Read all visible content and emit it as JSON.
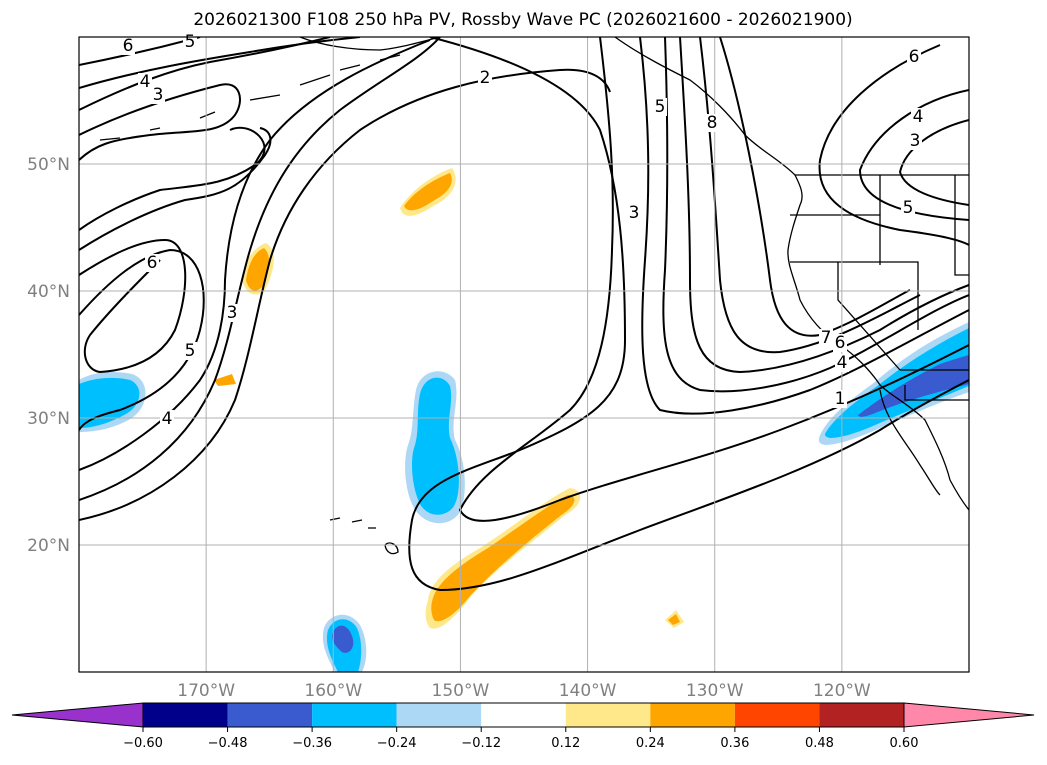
{
  "title": "2026021300 F108 250 hPa PV, Rossby Wave PC (2026021600 - 2026021900)",
  "map": {
    "lat_range": [
      10,
      60
    ],
    "lon_range": [
      -180,
      -110
    ],
    "lat_ticks": [
      {
        "value": 20,
        "label": "20°N"
      },
      {
        "value": 30,
        "label": "30°N"
      },
      {
        "value": 40,
        "label": "40°N"
      },
      {
        "value": 50,
        "label": "50°N"
      }
    ],
    "lon_ticks": [
      {
        "value": -170,
        "label": "170°W"
      },
      {
        "value": -160,
        "label": "160°W"
      },
      {
        "value": -150,
        "label": "150°W"
      },
      {
        "value": -140,
        "label": "140°W"
      },
      {
        "value": -130,
        "label": "130°W"
      },
      {
        "value": -120,
        "label": "120°W"
      }
    ],
    "contour_labels": [
      "1",
      "2",
      "3",
      "4",
      "5",
      "6",
      "7",
      "8"
    ]
  },
  "colorbar": {
    "ticks": [
      "−0.60",
      "−0.48",
      "−0.36",
      "−0.24",
      "−0.12",
      "0.12",
      "0.24",
      "0.36",
      "0.48",
      "0.60"
    ],
    "colors": {
      "under": "#9932cc",
      "bins": [
        "#00008b",
        "#3a5bd0",
        "#00bfff",
        "#add8f5",
        "#ffffff",
        "#ffe88a",
        "#ffa500",
        "#ff4500",
        "#b22222"
      ],
      "over": "#ff88aa"
    }
  },
  "colors": {
    "grid": "#b0b0b0",
    "contour": "#000000",
    "orange": "#ffa500",
    "light_yellow": "#ffe88a",
    "cyan": "#00bfff",
    "light_blue": "#add8f5",
    "blue": "#3a5bd0"
  }
}
